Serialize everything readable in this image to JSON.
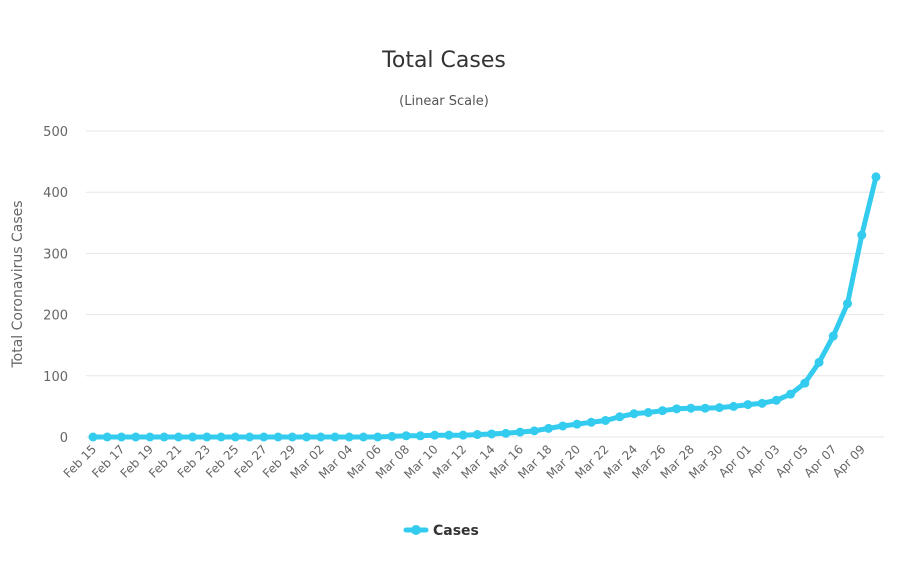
{
  "chart_data": {
    "type": "line",
    "title": "Total Cases",
    "subtitle": "(Linear Scale)",
    "ylabel": "Total Coronavirus Cases",
    "xlabel": "",
    "ylim": [
      0,
      500
    ],
    "yticks": [
      0,
      100,
      200,
      300,
      400,
      500
    ],
    "grid": true,
    "legend_position": "bottom-center",
    "x": [
      "Feb 15",
      "Feb 16",
      "Feb 17",
      "Feb 18",
      "Feb 19",
      "Feb 20",
      "Feb 21",
      "Feb 22",
      "Feb 23",
      "Feb 24",
      "Feb 25",
      "Feb 26",
      "Feb 27",
      "Feb 28",
      "Feb 29",
      "Mar 01",
      "Mar 02",
      "Mar 03",
      "Mar 04",
      "Mar 05",
      "Mar 06",
      "Mar 07",
      "Mar 08",
      "Mar 09",
      "Mar 10",
      "Mar 11",
      "Mar 12",
      "Mar 13",
      "Mar 14",
      "Mar 15",
      "Mar 16",
      "Mar 17",
      "Mar 18",
      "Mar 19",
      "Mar 20",
      "Mar 21",
      "Mar 22",
      "Mar 23",
      "Mar 24",
      "Mar 25",
      "Mar 26",
      "Mar 27",
      "Mar 28",
      "Mar 29",
      "Mar 30",
      "Mar 31",
      "Apr 01",
      "Apr 02",
      "Apr 03",
      "Apr 04",
      "Apr 05",
      "Apr 06",
      "Apr 07",
      "Apr 08",
      "Apr 09",
      "Apr 10"
    ],
    "xtick_labels": [
      "Feb 15",
      "Feb 17",
      "Feb 19",
      "Feb 21",
      "Feb 23",
      "Feb 25",
      "Feb 27",
      "Feb 29",
      "Mar 02",
      "Mar 04",
      "Mar 06",
      "Mar 08",
      "Mar 10",
      "Mar 12",
      "Mar 14",
      "Mar 16",
      "Mar 18",
      "Mar 20",
      "Mar 22",
      "Mar 24",
      "Mar 26",
      "Mar 28",
      "Mar 30",
      "Apr 01",
      "Apr 03",
      "Apr 05",
      "Apr 07",
      "Apr 09"
    ],
    "series": [
      {
        "name": "Cases",
        "color": "#33ccee",
        "values": [
          0,
          0,
          0,
          0,
          0,
          0,
          0,
          0,
          0,
          0,
          0,
          0,
          0,
          0,
          0,
          0,
          0,
          0,
          0,
          0,
          0,
          1,
          2,
          2,
          3,
          3,
          3,
          4,
          5,
          6,
          8,
          10,
          14,
          18,
          21,
          24,
          27,
          33,
          38,
          40,
          43,
          46,
          47,
          47,
          48,
          50,
          53,
          55,
          60,
          70,
          88,
          122,
          165,
          218,
          330,
          425
        ]
      }
    ]
  }
}
